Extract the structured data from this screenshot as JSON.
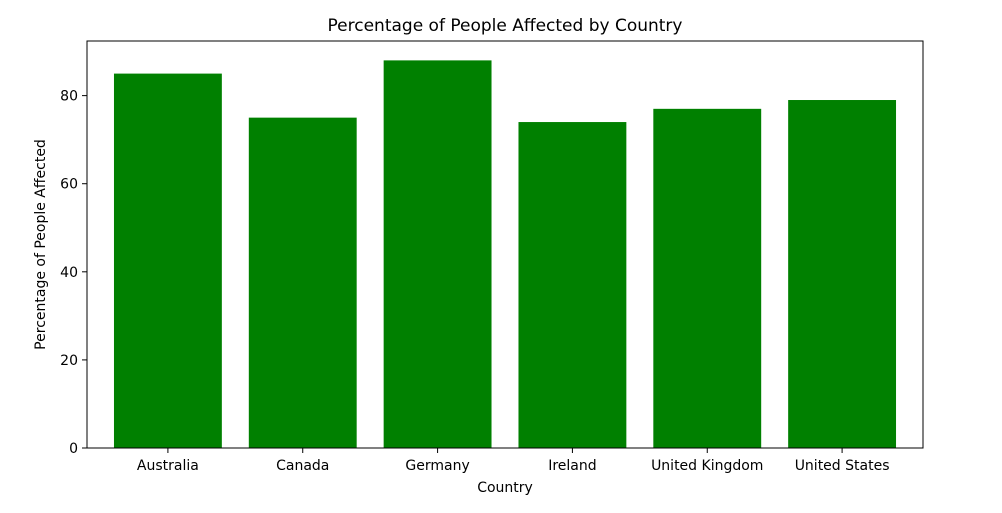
{
  "chart_data": {
    "type": "bar",
    "title": "Percentage of People Affected by Country",
    "xlabel": "Country",
    "ylabel": "Percentage of People Affected",
    "categories": [
      "Australia",
      "Canada",
      "Germany",
      "Ireland",
      "United Kingdom",
      "United States"
    ],
    "values": [
      85,
      75,
      88,
      74,
      77,
      79
    ],
    "ylim": [
      0,
      92.4
    ],
    "yticks": [
      0,
      20,
      40,
      60,
      80
    ],
    "bar_color": "#008000",
    "grid": false,
    "legend": "none"
  }
}
